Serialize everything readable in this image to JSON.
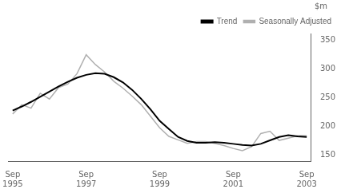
{
  "chart_data": {
    "type": "line",
    "ylabel": "$m",
    "x": [
      0,
      1,
      2,
      3,
      4,
      5,
      6,
      7,
      8,
      9,
      10,
      11,
      12,
      13,
      14,
      15,
      16,
      17,
      18,
      19,
      20,
      21,
      22,
      23,
      24,
      25,
      26,
      27,
      28,
      29,
      30,
      31,
      32
    ],
    "series": [
      {
        "name": "Trend",
        "color": "#000000",
        "values": [
          228,
          235,
          243,
          252,
          261,
          270,
          278,
          285,
          290,
          293,
          292,
          286,
          277,
          264,
          248,
          230,
          210,
          196,
          182,
          175,
          172,
          172,
          173,
          172,
          170,
          168,
          167,
          170,
          176,
          182,
          185,
          183,
          182
        ]
      },
      {
        "name": "Seasonally Adjusted",
        "color": "#b0b0b0",
        "values": [
          222,
          238,
          232,
          258,
          248,
          268,
          274,
          292,
          325,
          308,
          295,
          279,
          267,
          253,
          238,
          218,
          198,
          183,
          177,
          171,
          174,
          174,
          171,
          167,
          162,
          158,
          165,
          188,
          192,
          176,
          180,
          184,
          184
        ]
      }
    ],
    "xlim": [
      -0.5,
      32.5
    ],
    "xticks": [
      {
        "value": 0,
        "label": "Sep\n1995"
      },
      {
        "value": 8,
        "label": "Sep\n1997"
      },
      {
        "value": 16,
        "label": "Sep\n1999"
      },
      {
        "value": 24,
        "label": "Sep\n2001"
      },
      {
        "value": 32,
        "label": "Sep\n2003"
      }
    ],
    "ylim": [
      140,
      362
    ],
    "yticks": [
      150,
      200,
      250,
      300,
      350
    ],
    "legend": "upper right",
    "grid": false
  }
}
